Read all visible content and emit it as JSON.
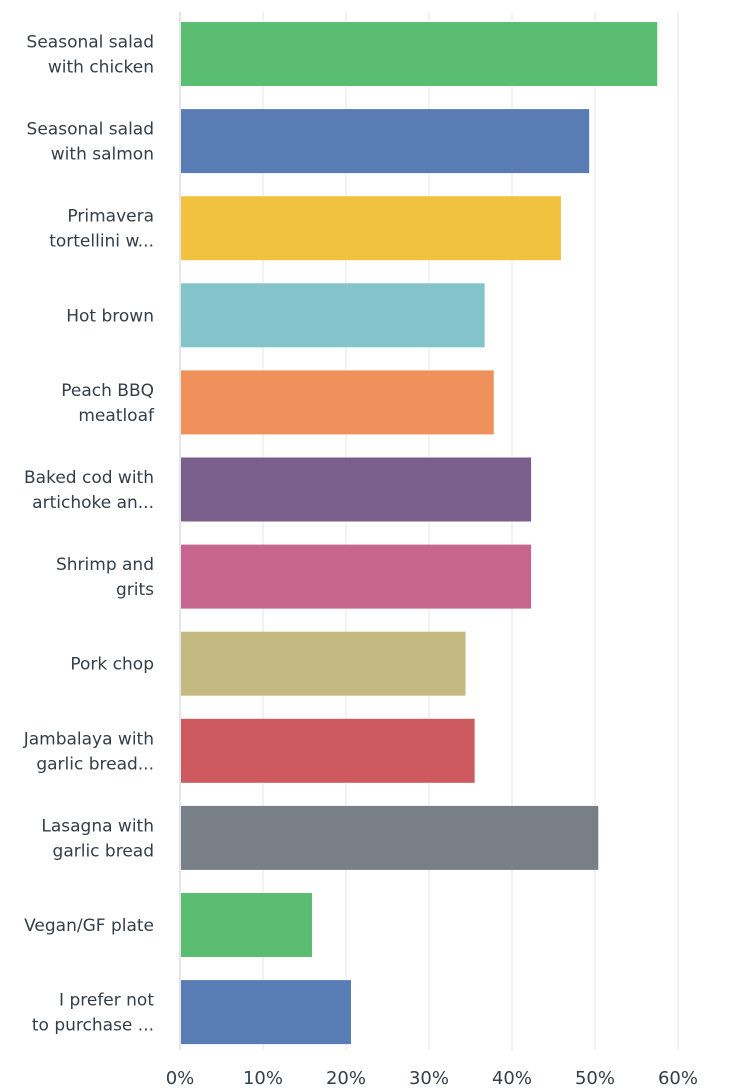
{
  "chart_data": {
    "type": "bar",
    "orientation": "horizontal",
    "categories": [
      [
        "Seasonal salad",
        "with chicken"
      ],
      [
        "Seasonal salad",
        "with salmon"
      ],
      [
        "Primavera",
        "tortellini w..."
      ],
      [
        "Hot brown"
      ],
      [
        "Peach BBQ",
        "meatloaf"
      ],
      [
        "Baked cod with",
        "artichoke an..."
      ],
      [
        "Shrimp and",
        "grits"
      ],
      [
        "Pork chop"
      ],
      [
        "Jambalaya with",
        "garlic bread..."
      ],
      [
        "Lasagna with",
        "garlic bread"
      ],
      [
        "Vegan/GF plate"
      ],
      [
        "I prefer not",
        "to purchase ..."
      ]
    ],
    "values": [
      57.5,
      49.3,
      45.9,
      36.7,
      37.8,
      42.3,
      42.3,
      34.4,
      35.5,
      50.4,
      15.9,
      20.6
    ],
    "colors": [
      "#5bbd72",
      "#5a7cb4",
      "#f0c23f",
      "#82c4ca",
      "#f0915b",
      "#7a5e8c",
      "#c6668f",
      "#c5b982",
      "#cc5a5e",
      "#797f87",
      "#5bbd72",
      "#5a7cb4"
    ],
    "xlim": [
      0,
      66
    ],
    "ticks": [
      "0%",
      "10%",
      "20%",
      "30%",
      "40%",
      "50%",
      "60%"
    ],
    "tick_values": [
      0,
      10,
      20,
      30,
      40,
      50,
      60
    ],
    "grid": true,
    "legend": "none"
  }
}
